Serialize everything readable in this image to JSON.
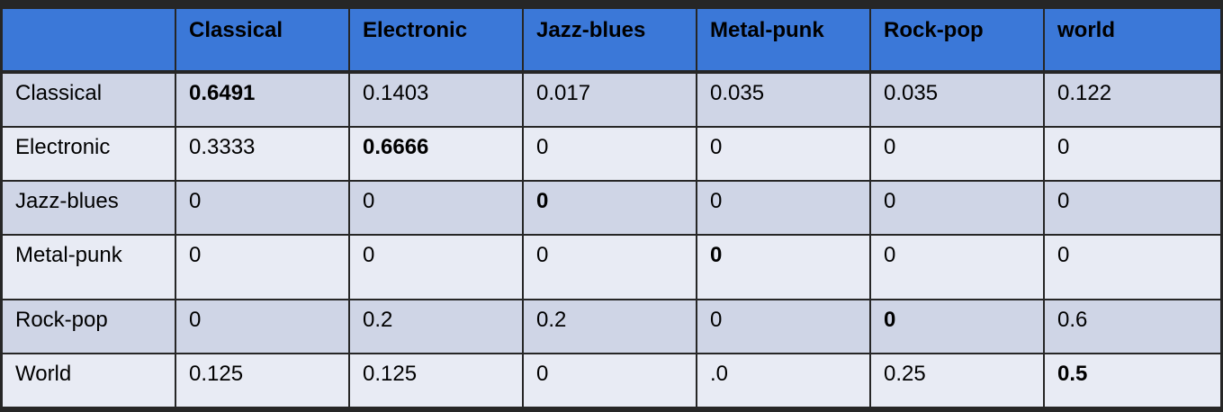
{
  "chart_data": {
    "type": "table",
    "corner": "",
    "columns": [
      "Classical",
      "Electronic",
      "Jazz-blues",
      "Metal-punk",
      "Rock-pop",
      "world"
    ],
    "rows": [
      {
        "label": "Classical",
        "cells": [
          "0.6491",
          "0.1403",
          "0.017",
          "0.035",
          "0.035",
          "0.122"
        ],
        "bold_index": 0
      },
      {
        "label": "Electronic",
        "cells": [
          "0.3333",
          "0.6666",
          "0",
          "0",
          "0",
          "0"
        ],
        "bold_index": 1
      },
      {
        "label": "Jazz-blues",
        "cells": [
          "0",
          "0",
          "0",
          "0",
          "0",
          "0"
        ],
        "bold_index": 2
      },
      {
        "label": "Metal-punk",
        "cells": [
          "0",
          "0",
          "0",
          "0",
          "0",
          "0"
        ],
        "bold_index": 3
      },
      {
        "label": "Rock-pop",
        "cells": [
          "0",
          "0.2",
          "0.2",
          "0",
          "0",
          "0.6"
        ],
        "bold_index": 4
      },
      {
        "label": "World",
        "cells": [
          "0.125",
          "0.125",
          "0",
          ".0",
          "0.25",
          "0.5"
        ],
        "bold_index": 5
      }
    ],
    "colors": {
      "header_bg": "#3b78d8",
      "row_odd_bg": "#cfd5e6",
      "row_even_bg": "#e8ebf4",
      "border": "#262626"
    }
  }
}
